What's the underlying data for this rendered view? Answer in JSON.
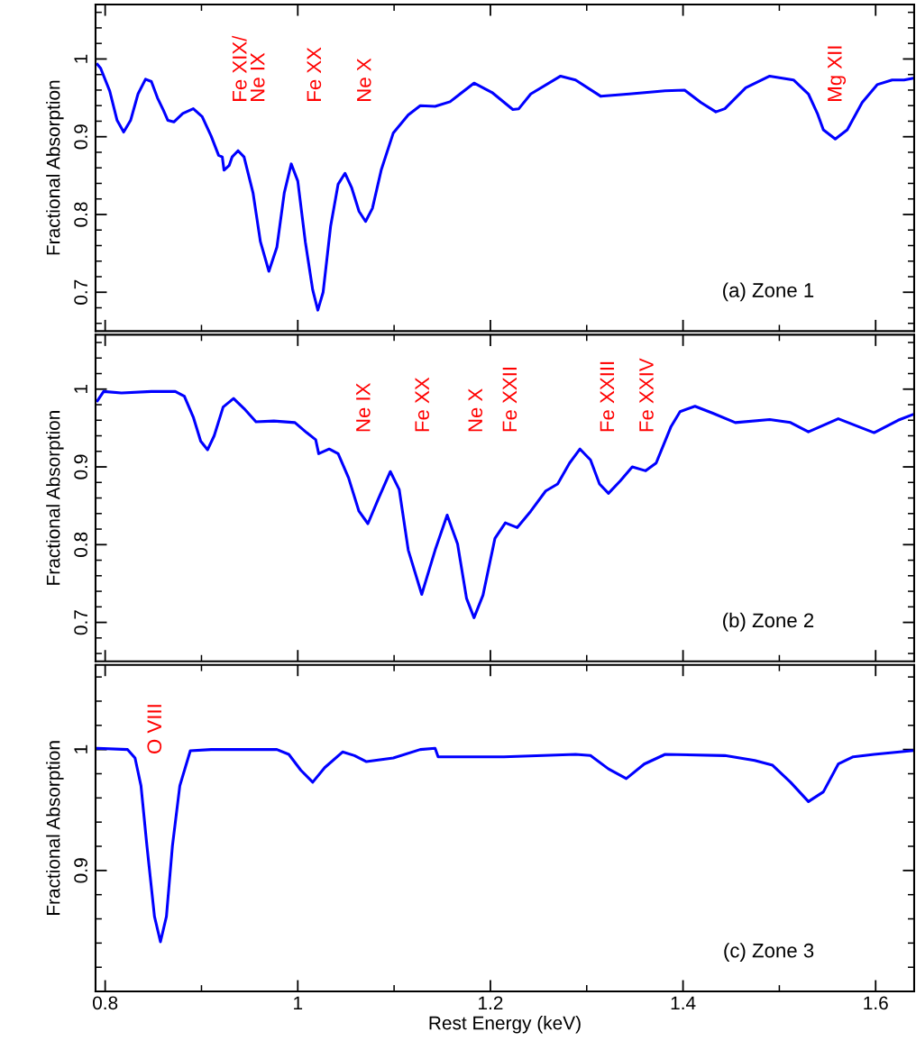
{
  "chart_data": [
    {
      "type": "line",
      "ylabel": "Fractional Absorption",
      "xlim": [
        0.79,
        1.64
      ],
      "ylim": [
        0.65,
        1.07
      ],
      "xticks": [
        0.8,
        1,
        1.2,
        1.4,
        1.6
      ],
      "yticks": [
        0.7,
        0.8,
        0.9,
        1
      ],
      "tick_labels": "y",
      "series": [
        {
          "color": "#0000ff",
          "x": [
            0.792,
            0.7953,
            0.8047,
            0.8124,
            0.8192,
            0.8264,
            0.8341,
            0.8419,
            0.848,
            0.8543,
            0.8605,
            0.8651,
            0.8713,
            0.8806,
            0.8915,
            0.9007,
            0.91,
            0.9178,
            0.9216,
            0.9234,
            0.9287,
            0.9318,
            0.938,
            0.9442,
            0.9535,
            0.9612,
            0.97,
            0.9783,
            0.986,
            0.9932,
            1.0,
            1.0078,
            1.0155,
            1.0208,
            1.0263,
            1.0341,
            1.0419,
            1.049,
            1.0558,
            1.0636,
            1.0704,
            1.0775,
            1.0868,
            1.0992,
            1.1147,
            1.1272,
            1.1426,
            1.1581,
            1.183,
            1.2016,
            1.2233,
            1.2295,
            1.2419,
            1.2729,
            1.2884,
            1.3147,
            1.3442,
            1.3814,
            1.4016,
            1.4186,
            1.4341,
            1.4434,
            1.4651,
            1.49,
            1.5147,
            1.5302,
            1.5395,
            1.5457,
            1.5581,
            1.5705,
            1.586,
            1.6016,
            1.6171,
            1.6295,
            1.638
          ],
          "values": [
            0.993,
            0.988,
            0.959,
            0.921,
            0.906,
            0.921,
            0.955,
            0.974,
            0.971,
            0.95,
            0.934,
            0.921,
            0.919,
            0.93,
            0.936,
            0.926,
            0.901,
            0.876,
            0.874,
            0.857,
            0.863,
            0.874,
            0.882,
            0.874,
            0.828,
            0.765,
            0.727,
            0.758,
            0.828,
            0.865,
            0.843,
            0.765,
            0.703,
            0.677,
            0.7,
            0.785,
            0.839,
            0.853,
            0.835,
            0.804,
            0.791,
            0.808,
            0.858,
            0.905,
            0.928,
            0.94,
            0.939,
            0.945,
            0.969,
            0.957,
            0.935,
            0.936,
            0.955,
            0.978,
            0.973,
            0.952,
            0.955,
            0.959,
            0.96,
            0.944,
            0.932,
            0.936,
            0.963,
            0.978,
            0.973,
            0.955,
            0.93,
            0.909,
            0.897,
            0.909,
            0.944,
            0.967,
            0.973,
            0.973,
            0.975
          ]
        }
      ],
      "annotations": [
        "Fe XIX/\nNe IX",
        "Fe XX",
        "Ne X",
        "Mg XII",
        "(a) Zone 1"
      ]
    },
    {
      "type": "line",
      "ylabel": "Fractional Absorption",
      "xlim": [
        0.79,
        1.64
      ],
      "ylim": [
        0.65,
        1.07
      ],
      "xticks": [
        0.8,
        1,
        1.2,
        1.4,
        1.6
      ],
      "yticks": [
        0.7,
        0.8,
        0.9,
        1
      ],
      "tick_labels": "y",
      "series": [
        {
          "color": "#0000ff",
          "x": [
            0.792,
            0.7984,
            0.817,
            0.848,
            0.8728,
            0.8822,
            0.8915,
            0.8992,
            0.9063,
            0.9132,
            0.9225,
            0.9333,
            0.9442,
            0.9566,
            0.9752,
            0.997,
            1.0093,
            1.0186,
            1.0217,
            1.0326,
            1.0419,
            1.0527,
            1.0635,
            1.0728,
            1.0837,
            1.0961,
            1.1053,
            1.1147,
            1.1287,
            1.1426,
            1.1551,
            1.1659,
            1.1752,
            1.183,
            1.1923,
            1.2047,
            1.2155,
            1.2279,
            1.2419,
            1.2574,
            1.2698,
            1.2822,
            1.293,
            1.3039,
            1.3133,
            1.3226,
            1.3349,
            1.3473,
            1.3612,
            1.3721,
            1.3876,
            1.3969,
            1.4124,
            1.431,
            1.4543,
            1.49,
            1.5116,
            1.5302,
            1.5612,
            1.5984,
            1.6233,
            1.638
          ],
          "values": [
            0.985,
            0.997,
            0.995,
            0.997,
            0.997,
            0.991,
            0.964,
            0.933,
            0.922,
            0.94,
            0.977,
            0.988,
            0.975,
            0.958,
            0.959,
            0.957,
            0.944,
            0.935,
            0.917,
            0.923,
            0.917,
            0.886,
            0.843,
            0.827,
            0.859,
            0.894,
            0.871,
            0.793,
            0.736,
            0.793,
            0.838,
            0.801,
            0.731,
            0.706,
            0.735,
            0.808,
            0.828,
            0.822,
            0.843,
            0.869,
            0.878,
            0.905,
            0.923,
            0.909,
            0.878,
            0.866,
            0.882,
            0.9,
            0.895,
            0.905,
            0.952,
            0.971,
            0.978,
            0.969,
            0.957,
            0.961,
            0.957,
            0.945,
            0.962,
            0.944,
            0.96,
            0.967
          ]
        }
      ],
      "annotations": [
        "Ne IX",
        "Fe XX",
        "Ne X",
        "Fe XXII",
        "Fe XXIII",
        "Fe XXIV",
        "(b) Zone 2"
      ]
    },
    {
      "type": "line",
      "xlabel": "Rest Energy (keV)",
      "ylabel": "Fractional Absorption",
      "xlim": [
        0.79,
        1.64
      ],
      "ylim": [
        0.8,
        1.07
      ],
      "xticks": [
        0.8,
        1,
        1.2,
        1.4,
        1.6
      ],
      "yticks": [
        0.9,
        1
      ],
      "series": [
        {
          "color": "#0000ff",
          "x": [
            0.792,
            0.8233,
            0.831,
            0.8372,
            0.8434,
            0.8512,
            0.8574,
            0.8636,
            0.8698,
            0.8775,
            0.8884,
            0.91,
            0.9783,
            0.9907,
            1.0031,
            1.0155,
            1.0279,
            1.0465,
            1.0589,
            1.0713,
            1.0992,
            1.1271,
            1.1426,
            1.1457,
            1.214,
            1.2884,
            1.3039,
            1.3226,
            1.3411,
            1.3597,
            1.3814,
            1.4434,
            1.4744,
            1.493,
            1.5116,
            1.5302,
            1.5457,
            1.5612,
            1.5767,
            1.5984,
            1.638
          ],
          "values": [
            1.001,
            1.0,
            0.993,
            0.97,
            0.92,
            0.862,
            0.841,
            0.862,
            0.92,
            0.97,
            0.999,
            1.0,
            1.0,
            0.996,
            0.983,
            0.973,
            0.985,
            0.998,
            0.995,
            0.99,
            0.993,
            1.0,
            1.001,
            0.994,
            0.994,
            0.996,
            0.995,
            0.984,
            0.976,
            0.988,
            0.996,
            0.995,
            0.991,
            0.987,
            0.973,
            0.957,
            0.965,
            0.988,
            0.994,
            0.996,
            0.999
          ]
        }
      ],
      "annotations": [
        "O VIII",
        "(c) Zone 3"
      ]
    }
  ]
}
